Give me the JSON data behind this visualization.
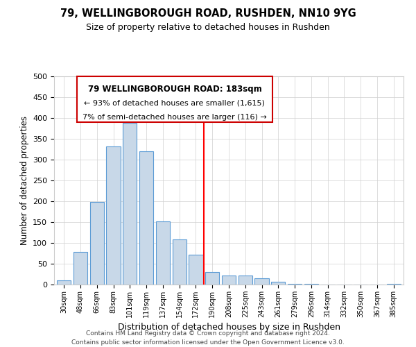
{
  "title": "79, WELLINGBOROUGH ROAD, RUSHDEN, NN10 9YG",
  "subtitle": "Size of property relative to detached houses in Rushden",
  "xlabel": "Distribution of detached houses by size in Rushden",
  "ylabel": "Number of detached properties",
  "bar_color": "#c8d8e8",
  "bar_edge_color": "#5b9bd5",
  "categories": [
    "30sqm",
    "48sqm",
    "66sqm",
    "83sqm",
    "101sqm",
    "119sqm",
    "137sqm",
    "154sqm",
    "172sqm",
    "190sqm",
    "208sqm",
    "225sqm",
    "243sqm",
    "261sqm",
    "279sqm",
    "296sqm",
    "314sqm",
    "332sqm",
    "350sqm",
    "367sqm",
    "385sqm"
  ],
  "values": [
    10,
    78,
    198,
    332,
    388,
    320,
    152,
    108,
    72,
    30,
    21,
    22,
    15,
    6,
    2,
    1,
    0,
    0,
    0,
    0,
    1
  ],
  "ylim": [
    0,
    500
  ],
  "yticks": [
    0,
    50,
    100,
    150,
    200,
    250,
    300,
    350,
    400,
    450,
    500
  ],
  "vline_x": 8.5,
  "vline_color": "red",
  "annotation_title": "79 WELLINGBOROUGH ROAD: 183sqm",
  "annotation_line1": "← 93% of detached houses are smaller (1,615)",
  "annotation_line2": "7% of semi-detached houses are larger (116) →",
  "footer_line1": "Contains HM Land Registry data © Crown copyright and database right 2024.",
  "footer_line2": "Contains public sector information licensed under the Open Government Licence v3.0.",
  "background_color": "#ffffff",
  "grid_color": "#d0d0d0"
}
